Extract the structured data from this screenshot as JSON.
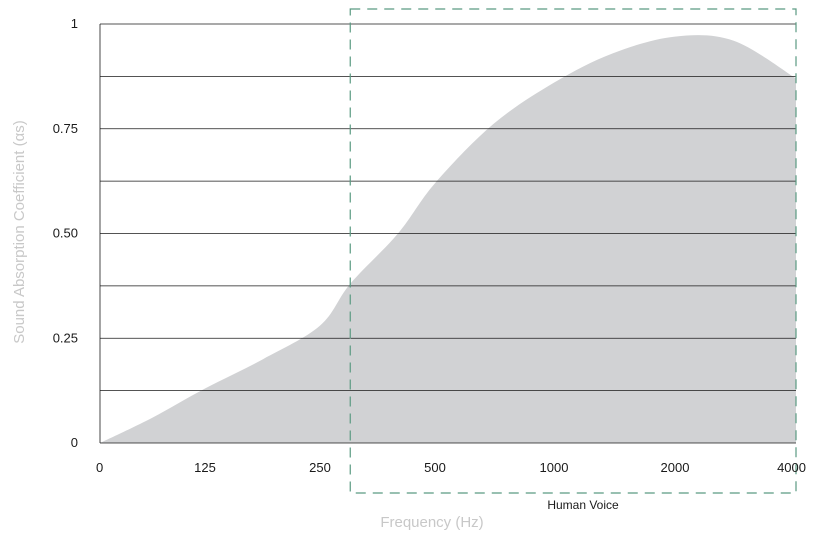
{
  "chart_data": {
    "type": "area",
    "xlabel": "Frequency (Hz)",
    "ylabel": "Sound Absorption Coefficient (αs)",
    "x_ticks": [
      "0",
      "125",
      "250",
      "500",
      "1000",
      "2000",
      "4000"
    ],
    "y_ticks": [
      "0",
      "0.25",
      "0.50",
      "0.75",
      "1"
    ],
    "ylim": [
      0,
      1
    ],
    "gridlines_y": [
      0.125,
      0.25,
      0.375,
      0.5,
      0.625,
      0.75,
      0.875,
      1
    ],
    "series": [
      {
        "x": [
          "0",
          "62",
          "125",
          "188",
          "250",
          "300",
          "400",
          "500",
          "700",
          "1000",
          "1400",
          "2000",
          "2800",
          "4000"
        ],
        "values": [
          0.0,
          0.06,
          0.13,
          0.2,
          0.28,
          0.38,
          0.5,
          0.62,
          0.76,
          0.86,
          0.93,
          0.97,
          0.96,
          0.87
        ]
      }
    ],
    "annotation": {
      "label": "Human Voice",
      "x_range": [
        "300",
        "4000"
      ],
      "style": "dashed box"
    },
    "colors": {
      "fill": "#d1d2d4",
      "grid": "#1a1a1a",
      "band": "#5a9a82",
      "axis_title": "#c8c8c8"
    },
    "grid": true,
    "legend": "none"
  }
}
